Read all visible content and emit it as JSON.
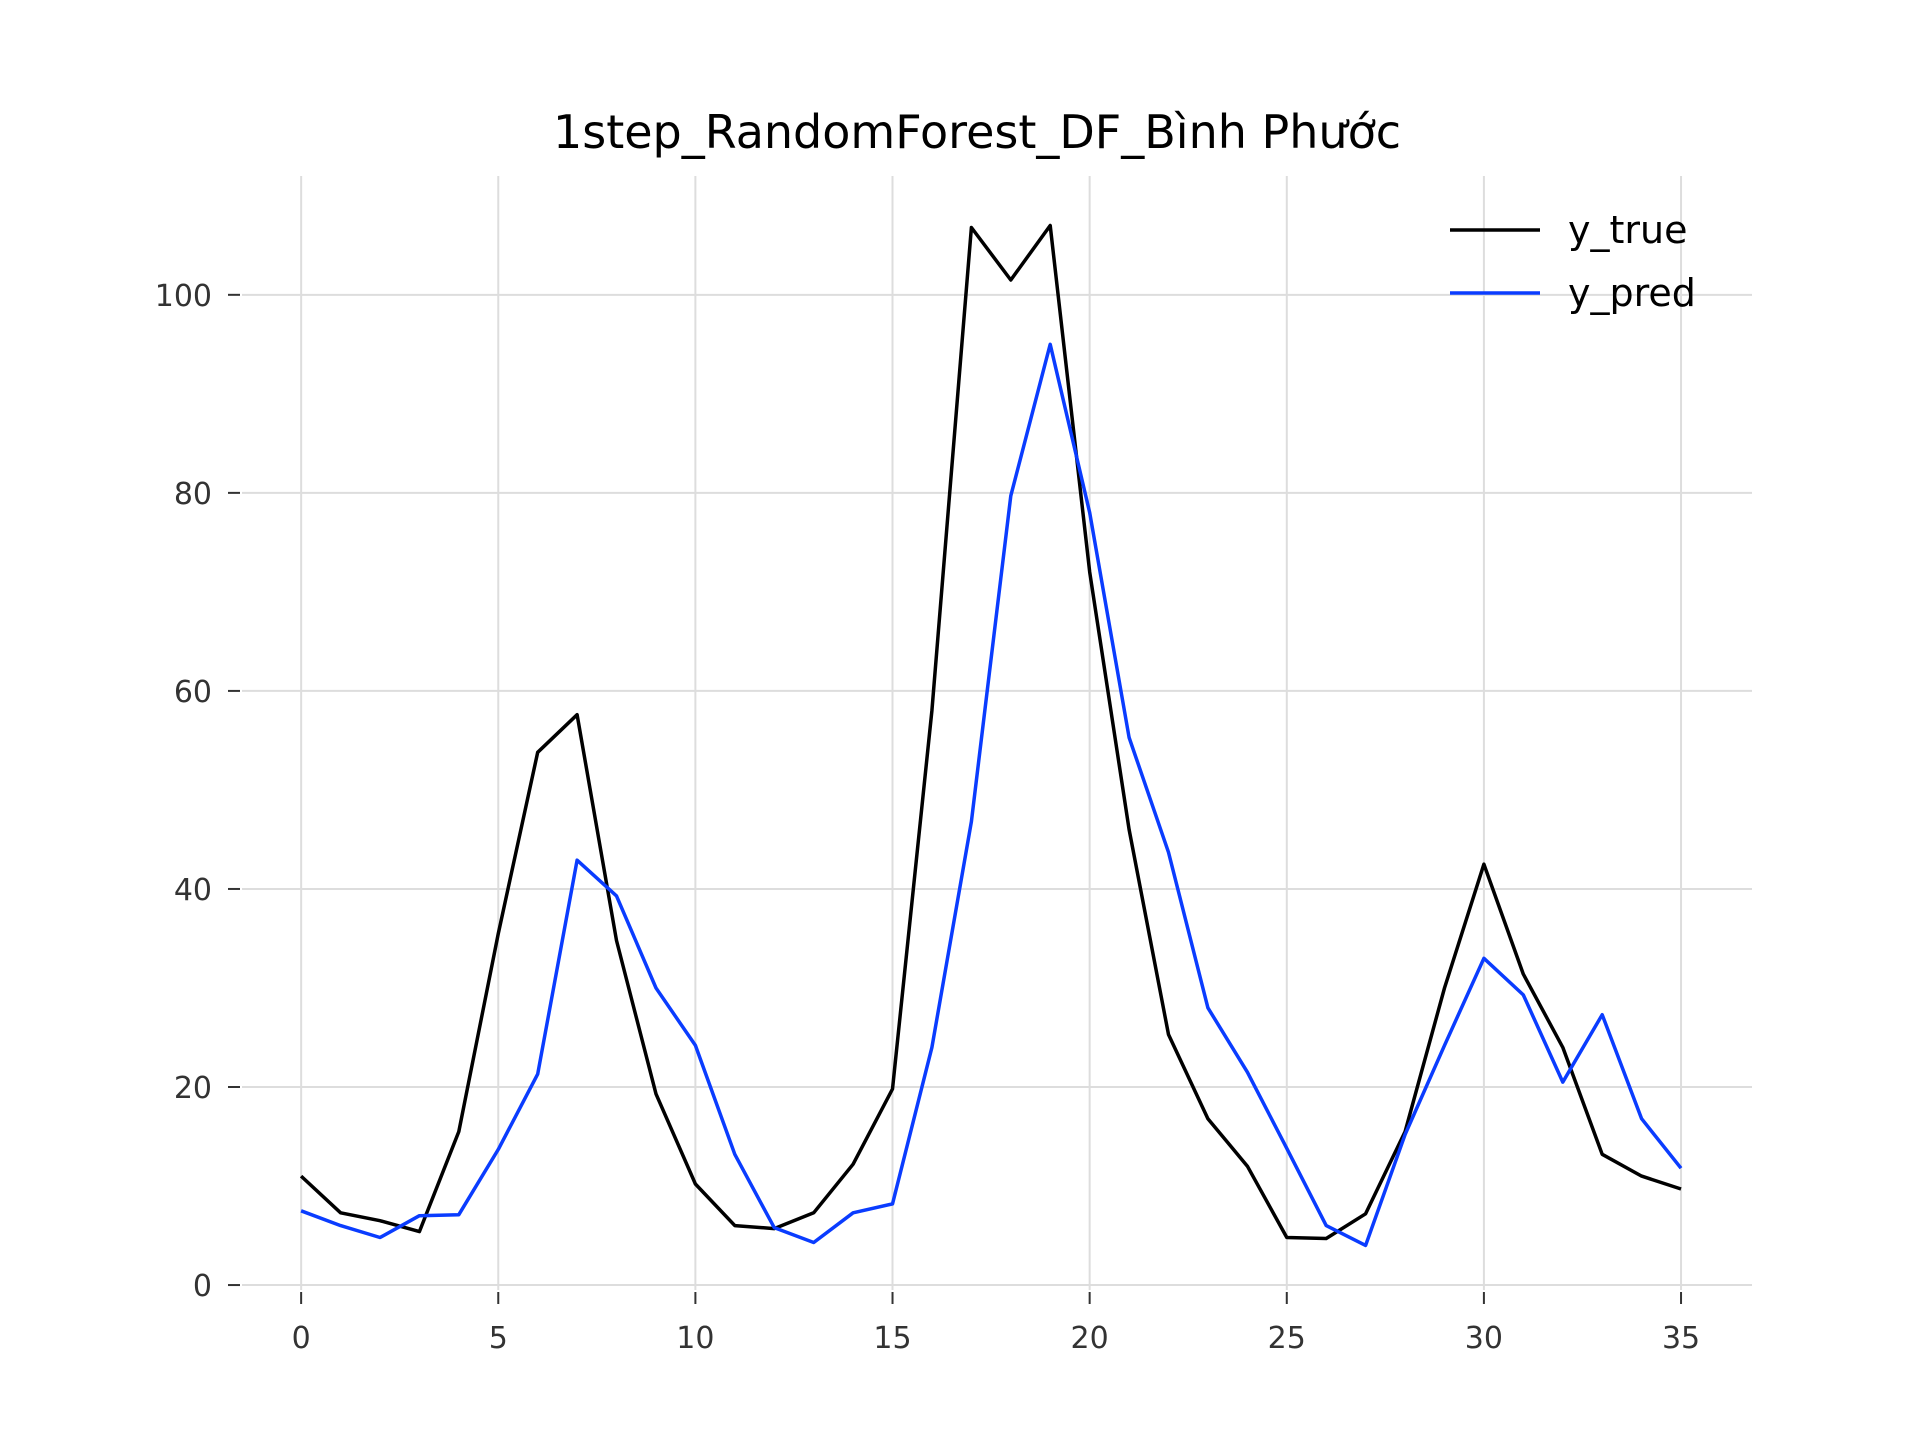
{
  "chart_data": {
    "type": "line",
    "title": "1step_RandomForest_DF_Bình Phước",
    "xlabel": "",
    "ylabel": "",
    "xlim": [
      -1.5,
      36.8
    ],
    "ylim": [
      -0.5,
      112
    ],
    "x_ticks": [
      0,
      5,
      10,
      15,
      20,
      25,
      30,
      35
    ],
    "y_ticks": [
      0,
      20,
      40,
      60,
      80,
      100
    ],
    "grid": true,
    "legend_position": "top-right",
    "x": [
      0,
      1,
      2,
      3,
      4,
      5,
      6,
      7,
      8,
      9,
      10,
      11,
      12,
      13,
      14,
      15,
      16,
      17,
      18,
      19,
      20,
      21,
      22,
      23,
      24,
      25,
      26,
      27,
      28,
      29,
      30,
      31,
      32,
      33,
      34,
      35
    ],
    "series": [
      {
        "name": "y_true",
        "color": "#000000",
        "values": [
          11.0,
          7.3,
          6.5,
          5.4,
          15.5,
          35.5,
          53.8,
          57.6,
          34.8,
          19.3,
          10.2,
          6.0,
          5.7,
          7.3,
          12.2,
          19.8,
          58.0,
          106.8,
          101.5,
          107.0,
          72.0,
          46.0,
          25.3,
          16.8,
          12.0,
          4.8,
          4.7,
          7.2,
          15.5,
          30.0,
          42.5,
          31.4,
          24.0,
          13.2,
          11.0,
          9.7
        ]
      },
      {
        "name": "y_pred",
        "color": "#0a3cff",
        "values": [
          7.5,
          6.0,
          4.8,
          7.0,
          7.1,
          13.7,
          21.3,
          42.9,
          39.3,
          30.0,
          24.2,
          13.2,
          5.8,
          4.3,
          7.3,
          8.2,
          24.0,
          46.8,
          79.7,
          95.0,
          78.0,
          55.3,
          43.7,
          28.0,
          21.5,
          13.8,
          6.0,
          4.0,
          15.2,
          24.2,
          33.0,
          29.3,
          20.5,
          27.3,
          16.8,
          11.8
        ]
      }
    ]
  }
}
